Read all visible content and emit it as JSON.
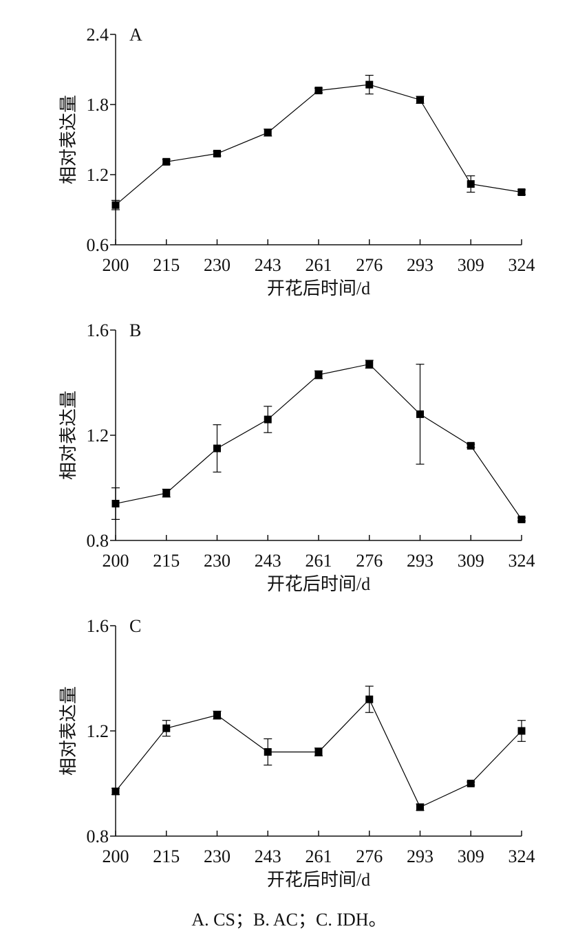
{
  "chart_data": [
    {
      "type": "line",
      "title": "A",
      "x_label": "开花后时间/d",
      "y_label": "相对表达量",
      "categories": [
        "200",
        "215",
        "230",
        "243",
        "261",
        "276",
        "293",
        "309",
        "324"
      ],
      "values": [
        0.94,
        1.31,
        1.38,
        1.56,
        1.92,
        1.97,
        1.84,
        1.12,
        1.05
      ],
      "errors": [
        0.04,
        0.02,
        0.02,
        0.03,
        0.02,
        0.08,
        0.03,
        0.07,
        0.02
      ],
      "color": "#000000",
      "ylim": [
        0.6,
        2.4
      ],
      "yticks": [
        0.6,
        1.2,
        1.8,
        2.4
      ]
    },
    {
      "type": "line",
      "title": "B",
      "x_label": "开花后时间/d",
      "y_label": "相对表达量",
      "categories": [
        "200",
        "215",
        "230",
        "243",
        "261",
        "276",
        "293",
        "309",
        "324"
      ],
      "values": [
        0.94,
        0.98,
        1.15,
        1.26,
        1.43,
        1.47,
        1.28,
        1.16,
        0.88
      ],
      "errors": [
        0.06,
        0.015,
        0.09,
        0.05,
        0.015,
        0.015,
        0.19,
        0.006,
        0.006
      ],
      "color": "#000000",
      "ylim": [
        0.8,
        1.6
      ],
      "yticks": [
        0.8,
        1.2,
        1.6
      ]
    },
    {
      "type": "line",
      "title": "C",
      "x_label": "开花后时间/d",
      "y_label": "相对表达量",
      "categories": [
        "200",
        "215",
        "230",
        "243",
        "261",
        "276",
        "293",
        "309",
        "324"
      ],
      "values": [
        0.97,
        1.21,
        1.26,
        1.12,
        1.12,
        1.32,
        0.91,
        1.0,
        1.2
      ],
      "errors": [
        0.012,
        0.03,
        0.015,
        0.05,
        0.015,
        0.05,
        0.012,
        0.006,
        0.04
      ],
      "color": "#000000",
      "ylim": [
        0.8,
        1.6
      ],
      "yticks": [
        0.8,
        1.2,
        1.6
      ]
    }
  ],
  "caption": "A. CS；B. AC；C. IDH。"
}
